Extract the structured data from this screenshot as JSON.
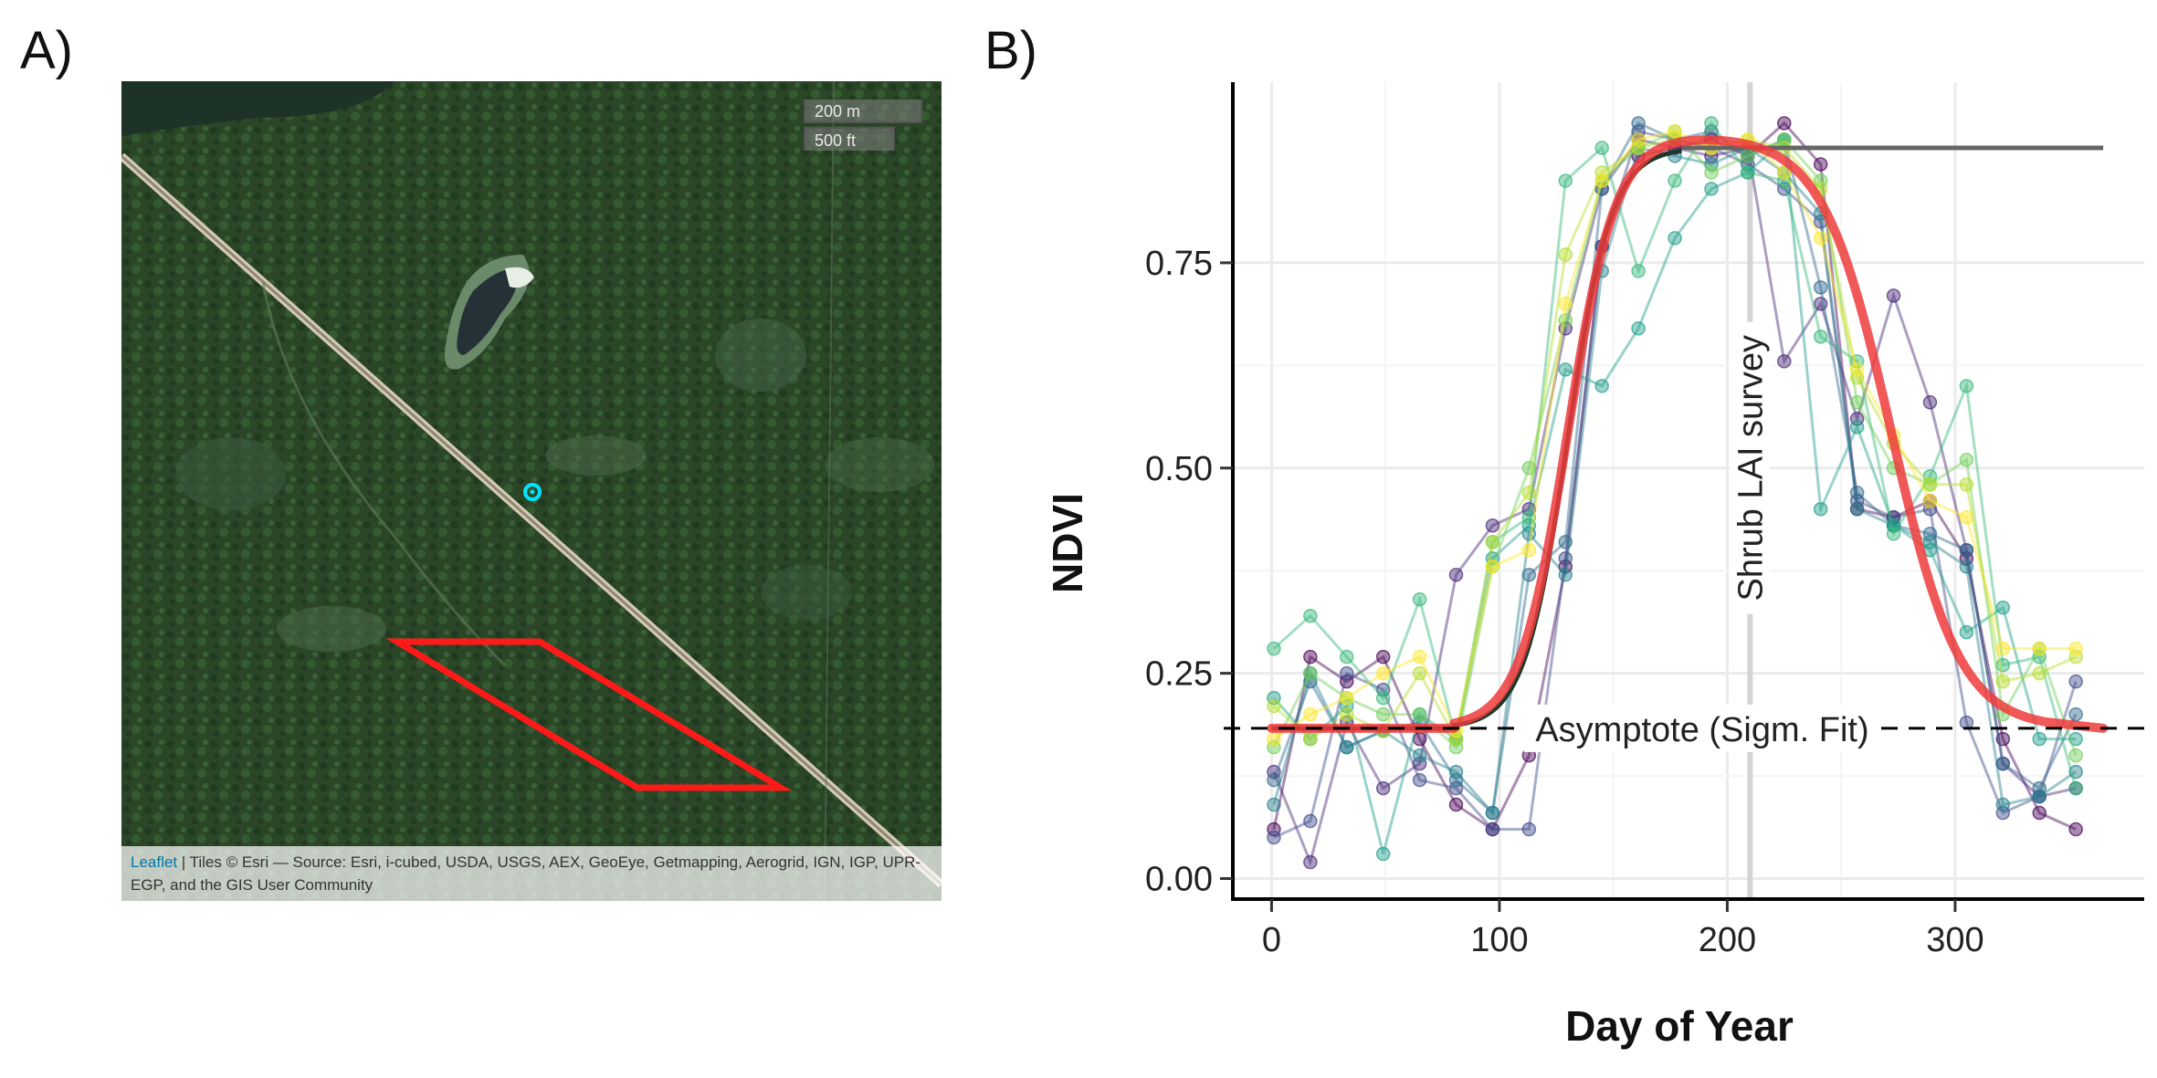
{
  "panels": {
    "a_label": "A)",
    "b_label": "B)"
  },
  "map": {
    "scale_metric": "200 m",
    "scale_imperial": "500 ft",
    "attribution_link": "Leaflet",
    "attribution_text": " | Tiles © Esri — Source: Esri, i-cubed, USDA, USGS, AEX, GeoEye, Getmapping, Aerogrid, IGN, IGP, UPR-EGP, and the GIS User Community",
    "colors": {
      "polygon": "#ff1a1a",
      "marker": "#00e5ff",
      "forest": "#2a4426"
    }
  },
  "chart_data": {
    "type": "line",
    "xlabel": "Day of Year",
    "ylabel": "NDVI",
    "xlim": [
      -17,
      383
    ],
    "ylim": [
      -0.025,
      0.97
    ],
    "x_ticks": [
      0,
      100,
      200,
      300
    ],
    "x_tick_labels": [
      "0",
      "100",
      "200",
      "300"
    ],
    "y_ticks": [
      0.0,
      0.25,
      0.5,
      0.75
    ],
    "y_tick_labels": [
      "0.00",
      "0.25",
      "0.50",
      "0.75"
    ],
    "grid": true,
    "annotations": {
      "asymptote_label": "Asymptote (Sigm. Fit)",
      "asymptote_value": 0.183,
      "survey_label": "Shrub LAI survey",
      "survey_day": 210,
      "plateau_value": 0.89,
      "plateau_from_day": 180,
      "plateau_to_day": 365
    },
    "x": [
      1,
      17,
      33,
      49,
      65,
      81,
      97,
      113,
      129,
      145,
      161,
      177,
      193,
      209,
      225,
      241,
      257,
      273,
      289,
      305,
      321,
      337,
      353
    ],
    "series": [
      {
        "color": "#440154",
        "values": [
          0.06,
          0.27,
          0.24,
          0.27,
          0.17,
          0.09,
          0.06,
          0.15,
          0.38,
          0.77,
          0.88,
          0.89,
          0.9,
          0.88,
          0.92,
          0.87,
          0.45,
          0.44,
          0.46,
          0.39,
          0.17,
          0.08,
          0.06
        ]
      },
      {
        "color": "#482878",
        "values": [
          0.13,
          0.02,
          0.19,
          0.11,
          0.14,
          0.37,
          0.43,
          0.45,
          0.67,
          0.84,
          0.9,
          0.89,
          0.88,
          0.89,
          0.63,
          0.7,
          0.56,
          0.71,
          0.58,
          0.4,
          0.14,
          0.1,
          0.11
        ]
      },
      {
        "color": "#3e4a89",
        "values": [
          0.05,
          0.07,
          0.25,
          0.23,
          0.12,
          0.11,
          0.06,
          0.06,
          0.39,
          0.77,
          0.91,
          0.9,
          0.89,
          0.87,
          0.84,
          0.8,
          0.46,
          0.44,
          0.45,
          0.19,
          0.08,
          0.1,
          0.24
        ]
      },
      {
        "color": "#31688e",
        "values": [
          0.12,
          0.24,
          0.16,
          0.18,
          0.19,
          0.12,
          0.08,
          0.37,
          0.41,
          0.84,
          0.92,
          0.9,
          0.91,
          0.88,
          0.9,
          0.72,
          0.47,
          0.43,
          0.42,
          0.4,
          0.14,
          0.11,
          0.2
        ]
      },
      {
        "color": "#26828e",
        "values": [
          0.09,
          0.25,
          0.16,
          0.18,
          0.15,
          0.13,
          0.08,
          0.42,
          0.37,
          0.74,
          0.89,
          0.88,
          0.87,
          0.89,
          0.86,
          0.81,
          0.45,
          0.43,
          0.41,
          0.38,
          0.09,
          0.1,
          0.13
        ]
      },
      {
        "color": "#1f9e89",
        "values": [
          0.22,
          0.17,
          0.21,
          0.03,
          0.2,
          0.17,
          0.39,
          0.43,
          0.62,
          0.6,
          0.67,
          0.78,
          0.84,
          0.86,
          0.9,
          0.45,
          0.55,
          0.43,
          0.4,
          0.3,
          0.33,
          0.17,
          0.17
        ]
      },
      {
        "color": "#35b779",
        "values": [
          0.28,
          0.32,
          0.27,
          0.22,
          0.34,
          0.17,
          0.41,
          0.44,
          0.85,
          0.89,
          0.74,
          0.85,
          0.92,
          0.86,
          0.85,
          0.66,
          0.63,
          0.42,
          0.49,
          0.6,
          0.26,
          0.27,
          0.11
        ]
      },
      {
        "color": "#6ece58",
        "values": [
          0.16,
          0.25,
          0.22,
          0.2,
          0.2,
          0.16,
          0.38,
          0.5,
          0.68,
          0.85,
          0.89,
          0.91,
          0.86,
          0.88,
          0.9,
          0.85,
          0.58,
          0.5,
          0.48,
          0.51,
          0.2,
          0.28,
          0.15
        ]
      },
      {
        "color": "#b5de2b",
        "values": [
          0.21,
          0.17,
          0.2,
          0.18,
          0.25,
          0.17,
          0.41,
          0.47,
          0.76,
          0.86,
          0.89,
          0.9,
          0.89,
          0.9,
          0.89,
          0.84,
          0.61,
          0.53,
          0.48,
          0.48,
          0.24,
          0.25,
          0.27
        ]
      },
      {
        "color": "#fde725",
        "values": [
          0.17,
          0.2,
          0.22,
          0.25,
          0.27,
          0.18,
          0.38,
          0.4,
          0.7,
          0.85,
          0.9,
          0.91,
          0.89,
          0.9,
          0.86,
          0.78,
          0.62,
          0.54,
          0.46,
          0.44,
          0.28,
          0.28,
          0.28
        ]
      }
    ],
    "fits": [
      {
        "color": "#1b3a2a",
        "values_from_fn": "green_fit"
      },
      {
        "color": "#ef3b3b",
        "values_from_fn": "red_fit"
      }
    ]
  }
}
